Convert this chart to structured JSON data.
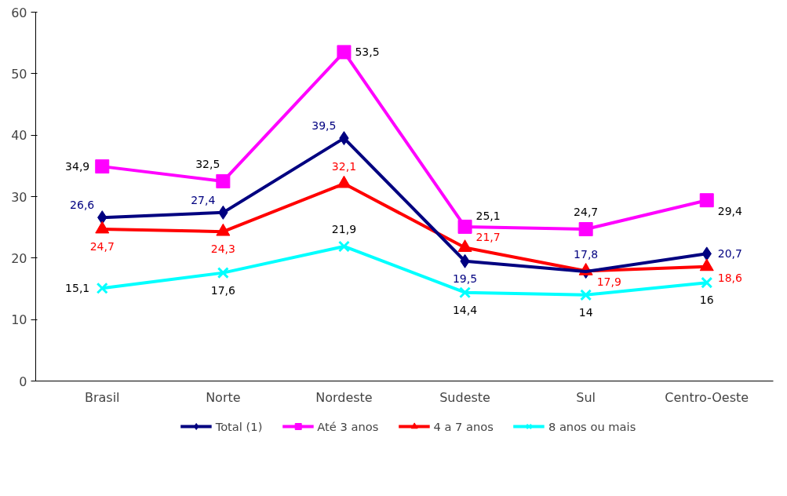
{
  "chart_data": {
    "type": "line",
    "categories": [
      "Brasil",
      "Norte",
      "Nordeste",
      "Sudeste",
      "Sul",
      "Centro-Oeste"
    ],
    "ylim": [
      0,
      60
    ],
    "yticks": [
      0,
      10,
      20,
      30,
      40,
      50,
      60
    ],
    "grid": false,
    "legend": "bottom",
    "line_style": "solid",
    "series": [
      {
        "name": "Total (1)",
        "color": "#000080",
        "marker": "diamond",
        "values": [
          26.6,
          27.4,
          39.5,
          19.5,
          17.8,
          20.7
        ],
        "value_labels": [
          "26,6",
          "27,4",
          "39,5",
          "19,5",
          "17,8",
          "20,7"
        ]
      },
      {
        "name": "Até 3 anos",
        "color": "#ff00ff",
        "marker": "square",
        "values": [
          34.9,
          32.5,
          53.5,
          25.1,
          24.7,
          29.4
        ],
        "value_labels": [
          "34,9",
          "32,5",
          "53,5",
          "25,1",
          "24,7",
          "29,4"
        ]
      },
      {
        "name": "4 a 7 anos",
        "color": "#ff0000",
        "marker": "triangle",
        "values": [
          24.7,
          24.3,
          32.1,
          21.7,
          17.9,
          18.6
        ],
        "value_labels": [
          "24,7",
          "24,3",
          "32,1",
          "21,7",
          "17,9",
          "18,6"
        ]
      },
      {
        "name": "8 anos ou mais",
        "color": "#00ffff",
        "marker": "cross",
        "values": [
          15.1,
          17.6,
          21.9,
          14.4,
          14,
          16
        ],
        "value_labels": [
          "15,1",
          "17,6",
          "21,9",
          "14,4",
          "14",
          "16"
        ]
      }
    ]
  }
}
